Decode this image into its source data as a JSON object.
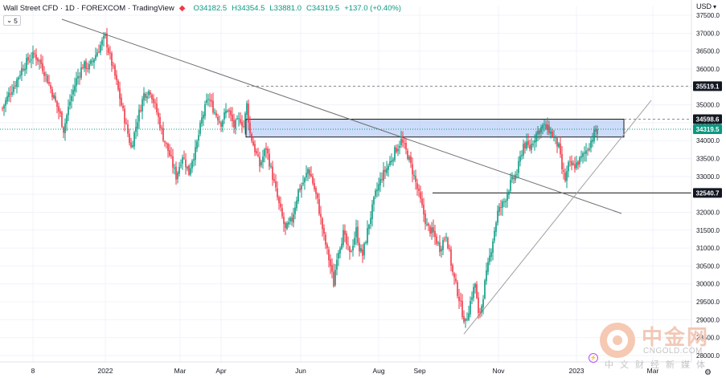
{
  "header": {
    "title": "Wall Street CFD · 1D · FOREXCOM · TradingView",
    "open": "O34182.5",
    "high": "H34354.5",
    "low": "L33881.0",
    "close": "C34319.5",
    "change": "+137.0 (+0.40%)",
    "interval_badge": "5",
    "currency": "USD"
  },
  "watermark": {
    "cn_name": "中金网",
    "domain": "CNGOLD.COM",
    "tagline": "中文财经新媒体"
  },
  "colors": {
    "up": "#089981",
    "down": "#f23645",
    "zone_fill": "#bcd0f7",
    "trendline": "#6e6e6e",
    "support_line": "#1a1a1a",
    "dashed": "#8a8a8a",
    "last_price": "#089981"
  },
  "chart_data": {
    "type": "candlestick",
    "symbol": "Wall Street CFD",
    "timeframe": "1D",
    "x_tick_labels": [
      "8",
      "2022",
      "Mar",
      "Apr",
      "Jun",
      "Aug",
      "Sep",
      "Nov",
      "2023",
      "Mar"
    ],
    "y_tick_labels": [
      37500,
      37000,
      36500,
      36000,
      35500,
      35000,
      34500,
      34000,
      33500,
      33000,
      32500,
      32000,
      31500,
      31000,
      30500,
      30000,
      29500,
      29000,
      28500,
      28000
    ],
    "ylim": [
      27800,
      37700
    ],
    "last_price": 34319.5,
    "price_labels": [
      35519.1,
      34598.6,
      34319.5,
      32540.7
    ],
    "resistance_zone": [
      34100,
      34598.6
    ],
    "horizontal_levels": [
      {
        "price": 35519.1,
        "style": "dashed"
      },
      {
        "price": 34598.6,
        "style": "dashed"
      },
      {
        "price": 34319.5,
        "style": "dotted"
      },
      {
        "price": 32540.7,
        "style": "solid"
      }
    ],
    "price_path": [
      [
        0,
        34900
      ],
      [
        4,
        35300
      ],
      [
        8,
        35600
      ],
      [
        12,
        36000
      ],
      [
        16,
        36250
      ],
      [
        20,
        36400
      ],
      [
        24,
        36150
      ],
      [
        28,
        35700
      ],
      [
        32,
        35200
      ],
      [
        36,
        34700
      ],
      [
        38,
        34300
      ],
      [
        42,
        35100
      ],
      [
        46,
        35700
      ],
      [
        50,
        36100
      ],
      [
        54,
        36050
      ],
      [
        58,
        36400
      ],
      [
        62,
        36750
      ],
      [
        64,
        36900
      ],
      [
        66,
        36500
      ],
      [
        70,
        35800
      ],
      [
        74,
        35000
      ],
      [
        78,
        34200
      ],
      [
        80,
        33800
      ],
      [
        84,
        34600
      ],
      [
        88,
        35300
      ],
      [
        92,
        35400
      ],
      [
        96,
        34800
      ],
      [
        100,
        34100
      ],
      [
        104,
        33600
      ],
      [
        108,
        33000
      ],
      [
        112,
        33600
      ],
      [
        116,
        33100
      ],
      [
        118,
        33500
      ],
      [
        120,
        33700
      ],
      [
        124,
        34600
      ],
      [
        128,
        35200
      ],
      [
        132,
        34800
      ],
      [
        136,
        34500
      ],
      [
        140,
        34900
      ],
      [
        144,
        34400
      ],
      [
        148,
        34600
      ],
      [
        150,
        34400
      ],
      [
        152,
        35000
      ],
      [
        154,
        34200
      ],
      [
        156,
        33900
      ],
      [
        160,
        33300
      ],
      [
        164,
        33800
      ],
      [
        168,
        33000
      ],
      [
        172,
        32200
      ],
      [
        176,
        31500
      ],
      [
        180,
        31800
      ],
      [
        184,
        32600
      ],
      [
        188,
        32900
      ],
      [
        190,
        33200
      ],
      [
        192,
        33000
      ],
      [
        196,
        32300
      ],
      [
        200,
        31300
      ],
      [
        204,
        30500
      ],
      [
        206,
        30000
      ],
      [
        208,
        30800
      ],
      [
        212,
        31400
      ],
      [
        216,
        30800
      ],
      [
        220,
        31500
      ],
      [
        222,
        31000
      ],
      [
        224,
        30800
      ],
      [
        228,
        31700
      ],
      [
        232,
        32500
      ],
      [
        236,
        33000
      ],
      [
        240,
        33300
      ],
      [
        244,
        33700
      ],
      [
        248,
        34000
      ],
      [
        252,
        33600
      ],
      [
        256,
        33000
      ],
      [
        260,
        32300
      ],
      [
        264,
        31600
      ],
      [
        268,
        31400
      ],
      [
        272,
        31000
      ],
      [
        276,
        31400
      ],
      [
        280,
        30300
      ],
      [
        284,
        29600
      ],
      [
        286,
        29200
      ],
      [
        288,
        28900
      ],
      [
        290,
        29300
      ],
      [
        292,
        29700
      ],
      [
        294,
        30000
      ],
      [
        296,
        29100
      ],
      [
        298,
        29400
      ],
      [
        300,
        30000
      ],
      [
        304,
        31000
      ],
      [
        308,
        32000
      ],
      [
        312,
        32300
      ],
      [
        316,
        32800
      ],
      [
        320,
        33100
      ],
      [
        324,
        33900
      ],
      [
        328,
        33800
      ],
      [
        332,
        34200
      ],
      [
        336,
        34400
      ],
      [
        340,
        34300
      ],
      [
        344,
        34000
      ],
      [
        346,
        33800
      ],
      [
        348,
        33200
      ],
      [
        350,
        32900
      ],
      [
        352,
        33300
      ],
      [
        356,
        33300
      ],
      [
        360,
        33500
      ],
      [
        364,
        33800
      ],
      [
        368,
        34200
      ],
      [
        370,
        34319.5
      ]
    ],
    "trendline_down": [
      [
        39,
        37200
      ],
      [
        389,
        32000
      ]
    ],
    "trendline_up": [
      [
        287,
        28600
      ],
      [
        404,
        35000
      ]
    ]
  }
}
